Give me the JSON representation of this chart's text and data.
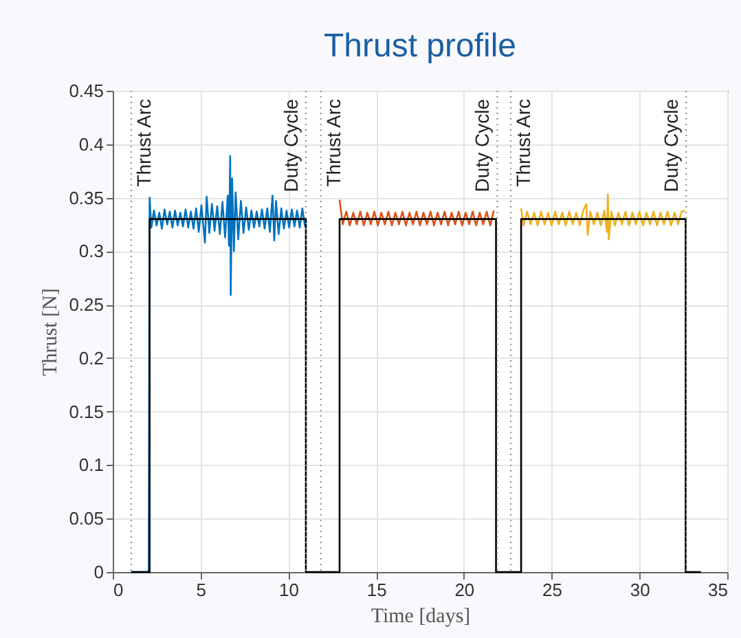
{
  "chart_data": {
    "type": "line",
    "title": "Thrust profile",
    "xlabel": "Time [days]",
    "ylabel": "Thrust [N]",
    "xlim": [
      0,
      35
    ],
    "xticks": [
      0,
      5,
      10,
      15,
      20,
      25,
      30,
      35
    ],
    "ylim": [
      0,
      0.45
    ],
    "yticks": [
      0,
      0.05,
      0.1,
      0.15,
      0.2,
      0.25,
      0.3,
      0.35,
      0.4,
      0.45
    ],
    "grid": true,
    "marker": "none",
    "line_style": "solid",
    "series": [
      {
        "color": "#0072bd",
        "x": [
          1.05,
          2.05,
          2.1,
          2.2,
          2.35,
          2.5,
          2.65,
          2.8,
          2.95,
          3.1,
          3.25,
          3.4,
          3.55,
          3.7,
          3.85,
          4.0,
          4.15,
          4.3,
          4.45,
          4.6,
          4.75,
          4.9,
          5.05,
          5.25,
          5.35,
          5.5,
          5.65,
          5.8,
          5.95,
          6.1,
          6.25,
          6.4,
          6.55,
          6.62,
          6.69,
          6.72,
          6.8,
          6.9,
          7.0,
          7.15,
          7.3,
          7.45,
          7.6,
          7.75,
          7.9,
          8.05,
          8.2,
          8.35,
          8.5,
          8.65,
          8.8,
          8.95,
          9.1,
          9.2,
          9.3,
          9.45,
          9.6,
          9.75,
          9.9,
          10.05,
          10.2,
          10.35,
          10.5,
          10.65,
          10.8,
          10.95
        ],
        "values": [
          0,
          0,
          0.35,
          0.322,
          0.338,
          0.324,
          0.336,
          0.321,
          0.339,
          0.325,
          0.337,
          0.322,
          0.338,
          0.324,
          0.336,
          0.323,
          0.339,
          0.322,
          0.337,
          0.321,
          0.34,
          0.318,
          0.343,
          0.308,
          0.351,
          0.317,
          0.344,
          0.319,
          0.342,
          0.316,
          0.346,
          0.313,
          0.352,
          0.305,
          0.389,
          0.259,
          0.368,
          0.3,
          0.355,
          0.311,
          0.347,
          0.317,
          0.341,
          0.32,
          0.338,
          0.322,
          0.337,
          0.323,
          0.339,
          0.321,
          0.34,
          0.318,
          0.352,
          0.31,
          0.347,
          0.316,
          0.34,
          0.321,
          0.338,
          0.322,
          0.339,
          0.323,
          0.338,
          0.322,
          0.34,
          0.323
        ]
      },
      {
        "color": "#d95319",
        "x": [
          12.92,
          13.1,
          13.3,
          13.5,
          13.7,
          13.9,
          14.1,
          14.3,
          14.5,
          14.7,
          14.9,
          15.1,
          15.3,
          15.5,
          15.7,
          15.9,
          16.1,
          16.3,
          16.5,
          16.7,
          16.9,
          17.1,
          17.3,
          17.5,
          17.7,
          17.9,
          18.1,
          18.3,
          18.5,
          18.7,
          18.9,
          19.1,
          19.3,
          19.5,
          19.7,
          19.9,
          20.1,
          20.3,
          20.5,
          20.7,
          20.9,
          21.1,
          21.3,
          21.5,
          21.7
        ],
        "values": [
          0.348,
          0.325,
          0.337,
          0.324,
          0.336,
          0.325,
          0.337,
          0.324,
          0.336,
          0.325,
          0.337,
          0.324,
          0.336,
          0.325,
          0.337,
          0.324,
          0.336,
          0.325,
          0.337,
          0.324,
          0.336,
          0.325,
          0.337,
          0.324,
          0.336,
          0.325,
          0.337,
          0.324,
          0.336,
          0.325,
          0.337,
          0.324,
          0.336,
          0.325,
          0.337,
          0.324,
          0.336,
          0.325,
          0.337,
          0.324,
          0.336,
          0.325,
          0.337,
          0.324,
          0.338
        ]
      },
      {
        "color": "#edb120",
        "x": [
          23.26,
          23.4,
          23.6,
          23.8,
          24.0,
          24.2,
          24.4,
          24.6,
          24.8,
          25.0,
          25.2,
          25.4,
          25.6,
          25.8,
          26.0,
          26.2,
          26.4,
          26.6,
          26.8,
          26.97,
          27.05,
          27.2,
          27.4,
          27.6,
          27.8,
          28.0,
          28.15,
          28.2,
          28.25,
          28.4,
          28.6,
          28.8,
          29.0,
          29.2,
          29.4,
          29.6,
          29.8,
          30.0,
          30.2,
          30.4,
          30.6,
          30.8,
          31.0,
          31.2,
          31.4,
          31.6,
          31.8,
          32.0,
          32.2,
          32.4,
          32.6
        ],
        "values": [
          0.34,
          0.324,
          0.337,
          0.325,
          0.336,
          0.324,
          0.337,
          0.325,
          0.336,
          0.324,
          0.337,
          0.325,
          0.336,
          0.324,
          0.337,
          0.325,
          0.336,
          0.324,
          0.338,
          0.344,
          0.315,
          0.337,
          0.325,
          0.336,
          0.324,
          0.338,
          0.318,
          0.353,
          0.311,
          0.337,
          0.324,
          0.336,
          0.325,
          0.337,
          0.324,
          0.336,
          0.325,
          0.337,
          0.324,
          0.336,
          0.325,
          0.337,
          0.324,
          0.336,
          0.325,
          0.337,
          0.324,
          0.336,
          0.325,
          0.337,
          0.338
        ]
      },
      {
        "color": "#000000",
        "x": [
          1.05,
          2.1,
          2.1,
          11.0,
          11.0,
          12.92,
          12.92,
          21.83,
          21.83,
          23.26,
          23.26,
          32.63,
          32.63,
          33.5
        ],
        "values": [
          0,
          0,
          0.33,
          0.33,
          0,
          0,
          0.33,
          0.33,
          0,
          0,
          0.33,
          0.33,
          0,
          0
        ]
      }
    ],
    "ref_lines": [
      {
        "axis": "x",
        "value": 1.05,
        "label": "Thrust Arc",
        "color": "#888888",
        "line_style": "dotted"
      },
      {
        "axis": "x",
        "value": 11.0,
        "label": "Duty Cycle",
        "color": "#888888",
        "line_style": "dotted"
      },
      {
        "axis": "x",
        "value": 11.85,
        "label": "Thrust Arc",
        "color": "#888888",
        "line_style": "dotted"
      },
      {
        "axis": "x",
        "value": 21.9,
        "label": "Duty Cycle",
        "color": "#888888",
        "line_style": "dotted"
      },
      {
        "axis": "x",
        "value": 22.67,
        "label": "Thrust Arc",
        "color": "#888888",
        "line_style": "dotted"
      },
      {
        "axis": "x",
        "value": 32.66,
        "label": "Duty Cycle",
        "color": "#888888",
        "line_style": "dotted"
      }
    ]
  }
}
